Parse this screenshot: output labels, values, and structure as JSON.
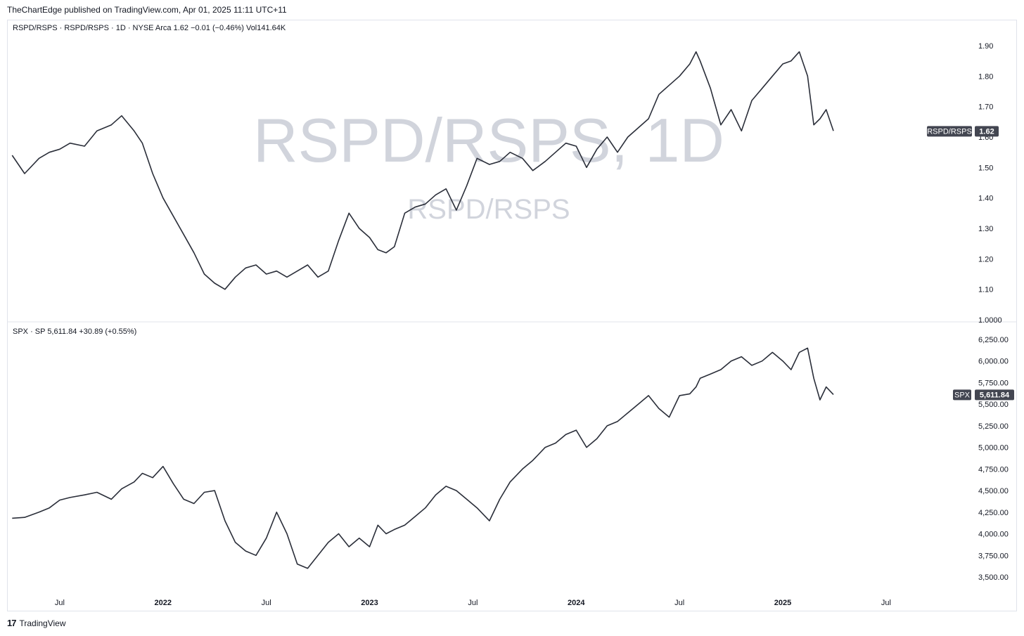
{
  "header": {
    "publisher_line": "TheChartEdge published on TradingView.com, Apr 01, 2025 11:11 UTC+11"
  },
  "footer": {
    "logo_mark": "17",
    "brand": "TradingView"
  },
  "colors": {
    "line": "#2a2e39",
    "grid_border": "#e0e3eb",
    "watermark": "#d1d4dc",
    "tag_bg": "#434651"
  },
  "chart_data": [
    {
      "type": "line",
      "pane": "top",
      "legend": "RSPD/RSPS · RSPD/RSPS · 1D · NYSE Arca  1.62  −0.01 (−0.46%)  Vol141.64K",
      "watermark_main": "RSPD/RSPS, 1D",
      "watermark_sub": "RSPD/RSPS",
      "series": [
        {
          "name": "RSPD/RSPS",
          "last_value_label": "1.62",
          "x": [
            2021.27,
            2021.33,
            2021.4,
            2021.45,
            2021.5,
            2021.55,
            2021.62,
            2021.68,
            2021.75,
            2021.8,
            2021.86,
            2021.9,
            2021.95,
            2022.0,
            2022.05,
            2022.1,
            2022.15,
            2022.2,
            2022.25,
            2022.3,
            2022.35,
            2022.4,
            2022.45,
            2022.5,
            2022.55,
            2022.6,
            2022.65,
            2022.7,
            2022.75,
            2022.8,
            2022.85,
            2022.9,
            2022.95,
            2023.0,
            2023.04,
            2023.08,
            2023.12,
            2023.17,
            2023.22,
            2023.27,
            2023.32,
            2023.37,
            2023.42,
            2023.47,
            2023.52,
            2023.58,
            2023.63,
            2023.68,
            2023.74,
            2023.79,
            2023.85,
            2023.9,
            2023.95,
            2024.0,
            2024.05,
            2024.1,
            2024.15,
            2024.2,
            2024.25,
            2024.3,
            2024.35,
            2024.4,
            2024.45,
            2024.5,
            2024.55,
            2024.58,
            2024.6,
            2024.65,
            2024.7,
            2024.75,
            2024.8,
            2024.85,
            2024.9,
            2024.95,
            2025.0,
            2025.04,
            2025.08,
            2025.12,
            2025.15,
            2025.18,
            2025.21,
            2025.245
          ],
          "y": [
            1.54,
            1.48,
            1.53,
            1.55,
            1.56,
            1.58,
            1.57,
            1.62,
            1.64,
            1.67,
            1.62,
            1.58,
            1.48,
            1.4,
            1.34,
            1.28,
            1.22,
            1.15,
            1.12,
            1.1,
            1.14,
            1.17,
            1.18,
            1.15,
            1.16,
            1.14,
            1.16,
            1.18,
            1.14,
            1.16,
            1.26,
            1.35,
            1.3,
            1.27,
            1.23,
            1.22,
            1.24,
            1.35,
            1.37,
            1.38,
            1.41,
            1.43,
            1.36,
            1.44,
            1.53,
            1.51,
            1.52,
            1.55,
            1.53,
            1.49,
            1.52,
            1.55,
            1.58,
            1.57,
            1.5,
            1.56,
            1.6,
            1.55,
            1.6,
            1.63,
            1.66,
            1.74,
            1.77,
            1.8,
            1.84,
            1.88,
            1.85,
            1.76,
            1.64,
            1.69,
            1.62,
            1.72,
            1.76,
            1.8,
            1.84,
            1.85,
            1.88,
            1.8,
            1.64,
            1.66,
            1.69,
            1.62
          ]
        }
      ],
      "y_ticks": [
        "1.90",
        "1.80",
        "1.70",
        "1.60",
        "1.50",
        "1.40",
        "1.30",
        "1.20",
        "1.10",
        "1.0000"
      ],
      "ylim": [
        1.0,
        1.9
      ]
    },
    {
      "type": "line",
      "pane": "bottom",
      "legend": "SPX · SP  5,611.84  +30.89 (+0.55%)",
      "series": [
        {
          "name": "SPX",
          "last_value_label": "5,611.84",
          "x": [
            2021.27,
            2021.33,
            2021.4,
            2021.45,
            2021.5,
            2021.55,
            2021.62,
            2021.68,
            2021.75,
            2021.8,
            2021.86,
            2021.9,
            2021.95,
            2022.0,
            2022.05,
            2022.1,
            2022.15,
            2022.2,
            2022.25,
            2022.3,
            2022.35,
            2022.4,
            2022.45,
            2022.5,
            2022.55,
            2022.6,
            2022.65,
            2022.7,
            2022.75,
            2022.8,
            2022.85,
            2022.9,
            2022.95,
            2023.0,
            2023.04,
            2023.08,
            2023.12,
            2023.17,
            2023.22,
            2023.27,
            2023.32,
            2023.37,
            2023.42,
            2023.47,
            2023.52,
            2023.58,
            2023.63,
            2023.68,
            2023.74,
            2023.79,
            2023.85,
            2023.9,
            2023.95,
            2024.0,
            2024.05,
            2024.1,
            2024.15,
            2024.2,
            2024.25,
            2024.3,
            2024.35,
            2024.4,
            2024.45,
            2024.5,
            2024.55,
            2024.58,
            2024.6,
            2024.65,
            2024.7,
            2024.75,
            2024.8,
            2024.85,
            2024.9,
            2024.95,
            2025.0,
            2025.04,
            2025.08,
            2025.12,
            2025.15,
            2025.18,
            2025.21,
            2025.245
          ],
          "y": [
            4180,
            4190,
            4250,
            4300,
            4390,
            4420,
            4450,
            4480,
            4400,
            4520,
            4600,
            4700,
            4650,
            4780,
            4580,
            4400,
            4350,
            4480,
            4500,
            4150,
            3900,
            3800,
            3750,
            3950,
            4250,
            4000,
            3650,
            3600,
            3750,
            3900,
            4000,
            3850,
            3950,
            3850,
            4100,
            4000,
            4050,
            4100,
            4200,
            4300,
            4450,
            4550,
            4500,
            4400,
            4300,
            4150,
            4400,
            4600,
            4750,
            4850,
            5000,
            5050,
            5150,
            5200,
            5000,
            5100,
            5250,
            5300,
            5400,
            5500,
            5600,
            5450,
            5350,
            5600,
            5620,
            5700,
            5800,
            5850,
            5900,
            6000,
            6050,
            5950,
            6000,
            6100,
            6000,
            5900,
            6100,
            6150,
            5800,
            5550,
            5700,
            5611.84
          ]
        }
      ],
      "y_ticks": [
        "6,250.00",
        "6,000.00",
        "5,750.00",
        "5,500.00",
        "5,250.00",
        "5,000.00",
        "4,750.00",
        "4,500.00",
        "4,250.00",
        "4,000.00",
        "3,750.00",
        "3,500.00"
      ],
      "ylim": [
        3500,
        6250
      ]
    }
  ],
  "time_axis": {
    "labels": [
      {
        "text": "Jul",
        "major": false
      },
      {
        "text": "2022",
        "major": true
      },
      {
        "text": "Jul",
        "major": false
      },
      {
        "text": "2023",
        "major": true
      },
      {
        "text": "Jul",
        "major": false
      },
      {
        "text": "2024",
        "major": true
      },
      {
        "text": "Jul",
        "major": false
      },
      {
        "text": "2025",
        "major": true
      },
      {
        "text": "Jul",
        "major": false
      }
    ],
    "label_values": [
      2021.5,
      2022.0,
      2022.5,
      2023.0,
      2023.5,
      2024.0,
      2024.5,
      2025.0,
      2025.5
    ],
    "xlim": [
      2021.245,
      2025.75
    ]
  }
}
